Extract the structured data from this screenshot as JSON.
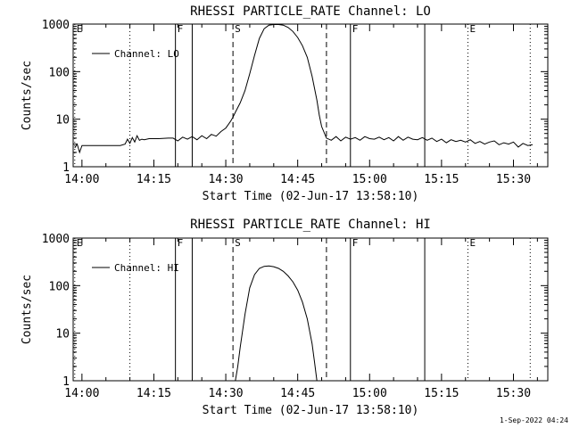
{
  "footer": {
    "timestamp": "1-Sep-2022 04:24"
  },
  "chart_data": [
    {
      "type": "line",
      "title": "RHESSI PARTICLE_RATE Channel: LO",
      "xlabel": "Start Time (02-Jun-17 13:58:10)",
      "ylabel": "Counts/sec",
      "yscale": "log",
      "ylim": [
        1,
        1000
      ],
      "xlim": [
        "13:58:10",
        "15:37:10"
      ],
      "yticks": [
        "1",
        "10",
        "100",
        "1000"
      ],
      "xticks": [
        "14:00",
        "14:15",
        "14:30",
        "14:45",
        "15:00",
        "15:15",
        "15:30"
      ],
      "legend": {
        "label": "Channel: LO",
        "position": "top-left"
      },
      "markers": [
        {
          "label": "E",
          "time": "13:58:30",
          "style": "dotted"
        },
        {
          "label": "",
          "time": "14:10:00",
          "style": "dotted"
        },
        {
          "label": "F",
          "time": "14:19:30",
          "style": "solid"
        },
        {
          "label": "",
          "time": "14:23:00",
          "style": "solid"
        },
        {
          "label": "S",
          "time": "14:31:30",
          "style": "dashed"
        },
        {
          "label": "",
          "time": "14:51:00",
          "style": "dashed"
        },
        {
          "label": "F",
          "time": "14:56:00",
          "style": "solid"
        },
        {
          "label": "",
          "time": "15:11:30",
          "style": "solid"
        },
        {
          "label": "E",
          "time": "15:20:30",
          "style": "dotted"
        },
        {
          "label": "",
          "time": "15:33:30",
          "style": "dotted"
        }
      ],
      "series": [
        {
          "name": "Channel: LO",
          "x": [
            "13:58:30",
            "13:59:00",
            "13:59:30",
            "14:00:00",
            "14:05:00",
            "14:08:00",
            "14:09:00",
            "14:09:30",
            "14:10:00",
            "14:10:30",
            "14:11:00",
            "14:11:30",
            "14:12:00",
            "14:12:30",
            "14:13:00",
            "14:14:00",
            "14:16:00",
            "14:18:00",
            "14:19:00",
            "14:20:00",
            "14:21:00",
            "14:22:00",
            "14:23:00",
            "14:24:00",
            "14:25:00",
            "14:26:00",
            "14:27:00",
            "14:28:00",
            "14:29:00",
            "14:30:00",
            "14:31:00",
            "14:31:30",
            "14:32:00",
            "14:33:00",
            "14:34:00",
            "14:35:00",
            "14:36:00",
            "14:37:00",
            "14:38:00",
            "14:39:00",
            "14:40:00",
            "14:41:00",
            "14:42:00",
            "14:43:00",
            "14:44:00",
            "14:45:00",
            "14:46:00",
            "14:47:00",
            "14:48:00",
            "14:49:00",
            "14:49:30",
            "14:50:00",
            "14:51:00",
            "14:52:00",
            "14:53:00",
            "14:54:00",
            "14:55:00",
            "14:56:00",
            "14:57:00",
            "14:58:00",
            "14:59:00",
            "15:00:00",
            "15:01:00",
            "15:02:00",
            "15:03:00",
            "15:04:00",
            "15:05:00",
            "15:06:00",
            "15:07:00",
            "15:08:00",
            "15:09:00",
            "15:10:00",
            "15:11:00",
            "15:12:00",
            "15:13:00",
            "15:14:00",
            "15:15:00",
            "15:16:00",
            "15:17:00",
            "15:18:00",
            "15:19:00",
            "15:20:00",
            "15:21:00",
            "15:22:00",
            "15:23:00",
            "15:24:00",
            "15:25:00",
            "15:26:00",
            "15:27:00",
            "15:28:00",
            "15:29:00",
            "15:30:00",
            "15:31:00",
            "15:32:00",
            "15:33:00",
            "15:34:00"
          ],
          "values": [
            2.5,
            3.0,
            2.0,
            2.8,
            2.8,
            2.8,
            3.0,
            3.8,
            3.1,
            4.1,
            3.3,
            4.5,
            3.6,
            3.8,
            3.7,
            3.9,
            3.9,
            4.0,
            4.0,
            3.5,
            4.2,
            3.8,
            4.3,
            3.7,
            4.5,
            3.9,
            4.8,
            4.4,
            5.5,
            6.5,
            9.0,
            11.0,
            14.0,
            22.0,
            40.0,
            90.0,
            220.0,
            500.0,
            800.0,
            950.0,
            980.0,
            980.0,
            950.0,
            850.0,
            700.0,
            520.0,
            350.0,
            200.0,
            80.0,
            25.0,
            12.0,
            7.0,
            4.0,
            3.6,
            4.3,
            3.5,
            4.2,
            3.8,
            4.1,
            3.6,
            4.3,
            3.9,
            3.8,
            4.2,
            3.7,
            4.1,
            3.5,
            4.3,
            3.6,
            4.2,
            3.8,
            3.7,
            4.1,
            3.6,
            4.0,
            3.4,
            3.8,
            3.2,
            3.7,
            3.4,
            3.6,
            3.3,
            3.7,
            3.1,
            3.4,
            3.0,
            3.3,
            3.5,
            2.9,
            3.2,
            3.0,
            3.3,
            2.6,
            3.1,
            2.8,
            2.9
          ]
        }
      ]
    },
    {
      "type": "line",
      "title": "RHESSI PARTICLE_RATE Channel: HI",
      "xlabel": "Start Time (02-Jun-17 13:58:10)",
      "ylabel": "Counts/sec",
      "yscale": "log",
      "ylim": [
        1,
        1000
      ],
      "xlim": [
        "13:58:10",
        "15:37:10"
      ],
      "yticks": [
        "1",
        "10",
        "100",
        "1000"
      ],
      "xticks": [
        "14:00",
        "14:15",
        "14:30",
        "14:45",
        "15:00",
        "15:15",
        "15:30"
      ],
      "legend": {
        "label": "Channel: HI",
        "position": "top-left"
      },
      "markers": [
        {
          "label": "E",
          "time": "13:58:30",
          "style": "dotted"
        },
        {
          "label": "",
          "time": "14:10:00",
          "style": "dotted"
        },
        {
          "label": "F",
          "time": "14:19:30",
          "style": "solid"
        },
        {
          "label": "",
          "time": "14:23:00",
          "style": "solid"
        },
        {
          "label": "S",
          "time": "14:31:30",
          "style": "dashed"
        },
        {
          "label": "",
          "time": "14:51:00",
          "style": "dashed"
        },
        {
          "label": "F",
          "time": "14:56:00",
          "style": "solid"
        },
        {
          "label": "",
          "time": "15:11:30",
          "style": "solid"
        },
        {
          "label": "E",
          "time": "15:20:30",
          "style": "dotted"
        },
        {
          "label": "",
          "time": "15:33:30",
          "style": "dotted"
        }
      ],
      "series": [
        {
          "name": "Channel: HI",
          "x": [
            "14:32:00",
            "14:32:30",
            "14:33:00",
            "14:34:00",
            "14:35:00",
            "14:36:00",
            "14:37:00",
            "14:38:00",
            "14:39:00",
            "14:40:00",
            "14:41:00",
            "14:42:00",
            "14:43:00",
            "14:44:00",
            "14:45:00",
            "14:46:00",
            "14:47:00",
            "14:48:00",
            "14:48:30",
            "14:49:00"
          ],
          "values": [
            1.0,
            2.0,
            5.0,
            25.0,
            90.0,
            170.0,
            230.0,
            255.0,
            260.0,
            250.0,
            230.0,
            200.0,
            160.0,
            120.0,
            80.0,
            45.0,
            20.0,
            6.0,
            2.5,
            1.0
          ]
        }
      ]
    }
  ]
}
